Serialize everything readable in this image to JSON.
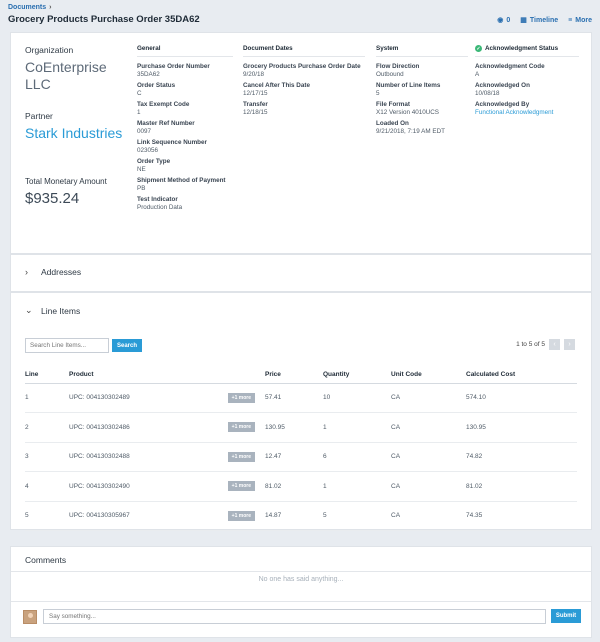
{
  "breadcrumb": {
    "label": "Documents"
  },
  "page_title": "Grocery Products Purchase Order 35DA62",
  "actions": {
    "count": "0",
    "timeline": "Timeline",
    "more": "More"
  },
  "summary": {
    "organization_label": "Organization",
    "organization": "CoEnterprise LLC",
    "partner_label": "Partner",
    "partner": "Stark Industries",
    "total_label": "Total Monetary Amount",
    "total": "$935.24"
  },
  "general": {
    "heading": "General",
    "fields": [
      {
        "k": "Purchase Order Number",
        "v": "35DA62"
      },
      {
        "k": "Order Status",
        "v": "C"
      },
      {
        "k": "Tax Exempt Code",
        "v": "1"
      },
      {
        "k": "Master Ref Number",
        "v": "0097"
      },
      {
        "k": "Link Sequence Number",
        "v": "023056"
      },
      {
        "k": "Order Type",
        "v": "NE"
      },
      {
        "k": "Shipment Method of Payment",
        "v": "PB"
      },
      {
        "k": "Test Indicator",
        "v": "Production Data"
      }
    ]
  },
  "dates": {
    "heading": "Document Dates",
    "fields": [
      {
        "k": "Grocery Products Purchase Order Date",
        "v": "9/20/18"
      },
      {
        "k": "Cancel After This Date",
        "v": "12/17/15"
      },
      {
        "k": "Transfer",
        "v": "12/18/15"
      }
    ]
  },
  "system": {
    "heading": "System",
    "fields": [
      {
        "k": "Flow Direction",
        "v": "Outbound"
      },
      {
        "k": "Number of Line Items",
        "v": "5"
      },
      {
        "k": "File Format",
        "v": "X12 Version 4010UCS"
      },
      {
        "k": "Loaded On",
        "v": "9/21/2018, 7:19 AM EDT"
      }
    ]
  },
  "ack": {
    "heading": "Acknowledgment Status",
    "fields": [
      {
        "k": "Acknowledgment Code",
        "v": "A"
      },
      {
        "k": "Acknowledged On",
        "v": "10/08/18"
      },
      {
        "k": "Acknowledged By",
        "v": "Functional Acknowledgment"
      }
    ]
  },
  "addresses": {
    "label": "Addresses"
  },
  "line_items": {
    "label": "Line Items",
    "search_placeholder": "Search Line Items...",
    "search_button": "Search",
    "pager": "1 to 5 of 5",
    "columns": [
      "Line",
      "Product",
      "Price",
      "Quantity",
      "Unit Code",
      "Calculated Cost"
    ],
    "more_label": "+1 more",
    "rows": [
      {
        "line": "1",
        "product": "UPC: 004130302489",
        "price": "57.41",
        "qty": "10",
        "unit": "CA",
        "cost": "574.10"
      },
      {
        "line": "2",
        "product": "UPC: 004130302486",
        "price": "130.95",
        "qty": "1",
        "unit": "CA",
        "cost": "130.95"
      },
      {
        "line": "3",
        "product": "UPC: 004130302488",
        "price": "12.47",
        "qty": "6",
        "unit": "CA",
        "cost": "74.82"
      },
      {
        "line": "4",
        "product": "UPC: 004130302490",
        "price": "81.02",
        "qty": "1",
        "unit": "CA",
        "cost": "81.02"
      },
      {
        "line": "5",
        "product": "UPC: 004130305967",
        "price": "14.87",
        "qty": "5",
        "unit": "CA",
        "cost": "74.35"
      }
    ]
  },
  "comments": {
    "title": "Comments",
    "empty": "No one has said anything...",
    "placeholder": "Say something...",
    "submit": "Submit"
  }
}
